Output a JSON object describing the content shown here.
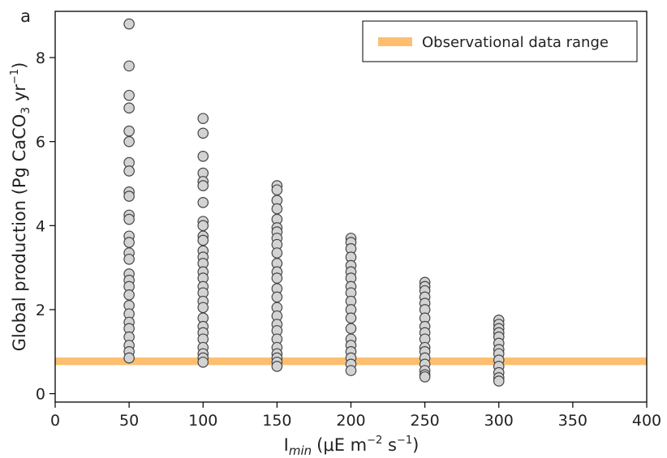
{
  "chart_data": {
    "type": "scatter",
    "panel_label": "a",
    "xlabel_main": "I",
    "xlabel_sub": "min",
    "xlabel_units": "(μE m",
    "xlabel_sup1": "−2",
    "xlabel_mid": " s",
    "xlabel_sup2": "−1",
    "xlabel_end": ")",
    "ylabel_main": "Global production (Pg CaCO",
    "ylabel_sub": "3",
    "ylabel_mid": " yr",
    "ylabel_sup": "−1",
    "ylabel_end": ")",
    "xlim": [
      0,
      400
    ],
    "ylim": [
      -0.2,
      9.1
    ],
    "xticks": [
      0,
      50,
      100,
      150,
      200,
      250,
      300,
      350,
      400
    ],
    "yticks": [
      0,
      2,
      4,
      6,
      8
    ],
    "grid": false,
    "legend": {
      "position": "top-right",
      "label": "Observational data range",
      "color": "#fdbf6f"
    },
    "band": {
      "y_min": 0.68,
      "y_max": 0.86,
      "color": "#fdbf6f"
    },
    "marker": {
      "fill": "#d3d3d3",
      "edge": "#444444"
    },
    "series": [
      {
        "x": 50,
        "values": [
          8.8,
          7.8,
          7.1,
          6.8,
          6.25,
          6.0,
          5.5,
          5.3,
          4.8,
          4.7,
          4.25,
          4.15,
          3.75,
          3.6,
          3.35,
          3.2,
          2.85,
          2.7,
          2.55,
          2.35,
          2.1,
          1.9,
          1.7,
          1.55,
          1.35,
          1.15,
          1.0,
          0.85
        ]
      },
      {
        "x": 100,
        "values": [
          6.55,
          6.2,
          5.65,
          5.25,
          5.05,
          4.95,
          4.55,
          4.1,
          4.0,
          3.75,
          3.65,
          3.4,
          3.25,
          3.1,
          2.9,
          2.75,
          2.55,
          2.4,
          2.2,
          2.05,
          1.8,
          1.6,
          1.45,
          1.3,
          1.1,
          0.95,
          0.85,
          0.75
        ]
      },
      {
        "x": 150,
        "values": [
          4.95,
          4.85,
          4.6,
          4.4,
          4.15,
          3.95,
          3.85,
          3.7,
          3.55,
          3.35,
          3.1,
          2.9,
          2.75,
          2.5,
          2.3,
          2.05,
          1.85,
          1.65,
          1.5,
          1.3,
          1.1,
          0.95,
          0.85,
          0.75,
          0.65
        ]
      },
      {
        "x": 200,
        "values": [
          3.7,
          3.6,
          3.45,
          3.25,
          3.05,
          2.9,
          2.75,
          2.55,
          2.4,
          2.2,
          2.0,
          1.8,
          1.55,
          1.3,
          1.15,
          1.0,
          0.85,
          0.7,
          0.55
        ]
      },
      {
        "x": 250,
        "values": [
          2.65,
          2.55,
          2.45,
          2.3,
          2.15,
          2.0,
          1.8,
          1.6,
          1.45,
          1.3,
          1.1,
          1.0,
          0.85,
          0.7,
          0.55,
          0.45,
          0.4
        ]
      },
      {
        "x": 300,
        "values": [
          1.75,
          1.65,
          1.55,
          1.45,
          1.35,
          1.2,
          1.05,
          0.95,
          0.8,
          0.65,
          0.5,
          0.38,
          0.3
        ]
      }
    ]
  }
}
